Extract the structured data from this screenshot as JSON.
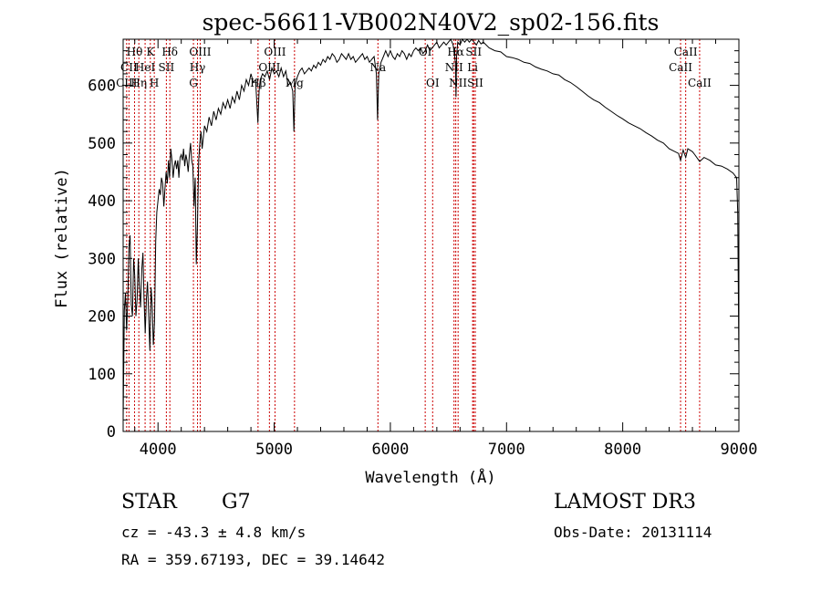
{
  "chart_data": {
    "type": "line",
    "title": "spec-56611-VB002N40V2_sp02-156.fits",
    "xlabel": "Wavelength (Å)",
    "ylabel": "Flux (relative)",
    "xlim": [
      3700,
      9000
    ],
    "ylim": [
      0,
      680
    ],
    "xticks": [
      4000,
      5000,
      6000,
      7000,
      8000,
      9000
    ],
    "yticks": [
      0,
      100,
      200,
      300,
      400,
      500,
      600
    ],
    "series": [
      {
        "points": [
          [
            3700,
            20
          ],
          [
            3710,
            210
          ],
          [
            3720,
            240
          ],
          [
            3730,
            175
          ],
          [
            3740,
            230
          ],
          [
            3750,
            320
          ],
          [
            3760,
            340
          ],
          [
            3770,
            220
          ],
          [
            3780,
            200
          ],
          [
            3790,
            300
          ],
          [
            3800,
            270
          ],
          [
            3810,
            200
          ],
          [
            3820,
            230
          ],
          [
            3830,
            300
          ],
          [
            3840,
            250
          ],
          [
            3850,
            215
          ],
          [
            3860,
            280
          ],
          [
            3870,
            310
          ],
          [
            3880,
            230
          ],
          [
            3890,
            170
          ],
          [
            3900,
            230
          ],
          [
            3910,
            260
          ],
          [
            3920,
            200
          ],
          [
            3930,
            140
          ],
          [
            3940,
            250
          ],
          [
            3950,
            220
          ],
          [
            3960,
            150
          ],
          [
            3970,
            190
          ],
          [
            3980,
            330
          ],
          [
            3990,
            380
          ],
          [
            4000,
            400
          ],
          [
            4010,
            420
          ],
          [
            4020,
            410
          ],
          [
            4030,
            440
          ],
          [
            4040,
            430
          ],
          [
            4050,
            390
          ],
          [
            4060,
            420
          ],
          [
            4070,
            450
          ],
          [
            4080,
            430
          ],
          [
            4090,
            470
          ],
          [
            4100,
            440
          ],
          [
            4110,
            490
          ],
          [
            4120,
            470
          ],
          [
            4130,
            440
          ],
          [
            4140,
            460
          ],
          [
            4150,
            470
          ],
          [
            4160,
            455
          ],
          [
            4170,
            470
          ],
          [
            4180,
            440
          ],
          [
            4190,
            475
          ],
          [
            4200,
            480
          ],
          [
            4210,
            470
          ],
          [
            4220,
            490
          ],
          [
            4230,
            460
          ],
          [
            4240,
            480
          ],
          [
            4250,
            470
          ],
          [
            4260,
            450
          ],
          [
            4270,
            480
          ],
          [
            4280,
            500
          ],
          [
            4290,
            470
          ],
          [
            4300,
            460
          ],
          [
            4310,
            390
          ],
          [
            4320,
            440
          ],
          [
            4330,
            290
          ],
          [
            4340,
            360
          ],
          [
            4350,
            470
          ],
          [
            4360,
            500
          ],
          [
            4370,
            520
          ],
          [
            4380,
            490
          ],
          [
            4390,
            510
          ],
          [
            4400,
            530
          ],
          [
            4420,
            520
          ],
          [
            4440,
            545
          ],
          [
            4460,
            530
          ],
          [
            4480,
            555
          ],
          [
            4500,
            540
          ],
          [
            4520,
            560
          ],
          [
            4540,
            550
          ],
          [
            4560,
            570
          ],
          [
            4580,
            560
          ],
          [
            4600,
            575
          ],
          [
            4620,
            560
          ],
          [
            4640,
            580
          ],
          [
            4660,
            570
          ],
          [
            4680,
            590
          ],
          [
            4700,
            575
          ],
          [
            4720,
            600
          ],
          [
            4740,
            590
          ],
          [
            4760,
            610
          ],
          [
            4780,
            600
          ],
          [
            4800,
            620
          ],
          [
            4820,
            605
          ],
          [
            4840,
            610
          ],
          [
            4860,
            535
          ],
          [
            4870,
            590
          ],
          [
            4880,
            610
          ],
          [
            4900,
            620
          ],
          [
            4920,
            615
          ],
          [
            4940,
            625
          ],
          [
            4960,
            610
          ],
          [
            4980,
            630
          ],
          [
            5000,
            620
          ],
          [
            5020,
            625
          ],
          [
            5040,
            615
          ],
          [
            5060,
            630
          ],
          [
            5080,
            615
          ],
          [
            5100,
            625
          ],
          [
            5120,
            600
          ],
          [
            5140,
            605
          ],
          [
            5160,
            590
          ],
          [
            5170,
            520
          ],
          [
            5180,
            600
          ],
          [
            5200,
            615
          ],
          [
            5220,
            625
          ],
          [
            5240,
            630
          ],
          [
            5260,
            620
          ],
          [
            5280,
            625
          ],
          [
            5300,
            630
          ],
          [
            5320,
            625
          ],
          [
            5340,
            635
          ],
          [
            5360,
            630
          ],
          [
            5380,
            640
          ],
          [
            5400,
            635
          ],
          [
            5420,
            645
          ],
          [
            5440,
            640
          ],
          [
            5460,
            650
          ],
          [
            5480,
            645
          ],
          [
            5500,
            655
          ],
          [
            5520,
            650
          ],
          [
            5540,
            640
          ],
          [
            5560,
            645
          ],
          [
            5580,
            655
          ],
          [
            5600,
            650
          ],
          [
            5620,
            645
          ],
          [
            5640,
            655
          ],
          [
            5660,
            645
          ],
          [
            5680,
            650
          ],
          [
            5700,
            640
          ],
          [
            5720,
            645
          ],
          [
            5740,
            650
          ],
          [
            5760,
            655
          ],
          [
            5780,
            645
          ],
          [
            5800,
            650
          ],
          [
            5820,
            640
          ],
          [
            5840,
            645
          ],
          [
            5860,
            650
          ],
          [
            5880,
            620
          ],
          [
            5890,
            540
          ],
          [
            5900,
            620
          ],
          [
            5920,
            640
          ],
          [
            5940,
            650
          ],
          [
            5960,
            660
          ],
          [
            5980,
            650
          ],
          [
            6000,
            660
          ],
          [
            6020,
            650
          ],
          [
            6040,
            645
          ],
          [
            6060,
            655
          ],
          [
            6080,
            650
          ],
          [
            6100,
            660
          ],
          [
            6120,
            655
          ],
          [
            6140,
            645
          ],
          [
            6160,
            655
          ],
          [
            6180,
            650
          ],
          [
            6200,
            660
          ],
          [
            6220,
            665
          ],
          [
            6240,
            660
          ],
          [
            6260,
            665
          ],
          [
            6280,
            655
          ],
          [
            6300,
            660
          ],
          [
            6320,
            670
          ],
          [
            6340,
            660
          ],
          [
            6360,
            665
          ],
          [
            6380,
            670
          ],
          [
            6400,
            675
          ],
          [
            6420,
            665
          ],
          [
            6440,
            670
          ],
          [
            6460,
            675
          ],
          [
            6480,
            670
          ],
          [
            6500,
            675
          ],
          [
            6520,
            680
          ],
          [
            6540,
            670
          ],
          [
            6560,
            640
          ],
          [
            6565,
            580
          ],
          [
            6570,
            650
          ],
          [
            6580,
            675
          ],
          [
            6600,
            670
          ],
          [
            6620,
            680
          ],
          [
            6640,
            675
          ],
          [
            6660,
            680
          ],
          [
            6680,
            675
          ],
          [
            6700,
            680
          ],
          [
            6720,
            675
          ],
          [
            6740,
            670
          ],
          [
            6760,
            678
          ],
          [
            6780,
            672
          ],
          [
            6800,
            675
          ],
          [
            6850,
            665
          ],
          [
            6900,
            660
          ],
          [
            6950,
            658
          ],
          [
            7000,
            650
          ],
          [
            7050,
            648
          ],
          [
            7100,
            645
          ],
          [
            7150,
            640
          ],
          [
            7200,
            638
          ],
          [
            7250,
            632
          ],
          [
            7300,
            628
          ],
          [
            7350,
            625
          ],
          [
            7400,
            620
          ],
          [
            7450,
            618
          ],
          [
            7500,
            610
          ],
          [
            7550,
            605
          ],
          [
            7600,
            598
          ],
          [
            7650,
            590
          ],
          [
            7700,
            582
          ],
          [
            7750,
            575
          ],
          [
            7800,
            570
          ],
          [
            7850,
            562
          ],
          [
            7900,
            555
          ],
          [
            7950,
            548
          ],
          [
            8000,
            542
          ],
          [
            8050,
            535
          ],
          [
            8100,
            530
          ],
          [
            8150,
            525
          ],
          [
            8200,
            518
          ],
          [
            8250,
            512
          ],
          [
            8300,
            505
          ],
          [
            8350,
            500
          ],
          [
            8400,
            490
          ],
          [
            8450,
            485
          ],
          [
            8480,
            482
          ],
          [
            8498,
            470
          ],
          [
            8520,
            488
          ],
          [
            8542,
            475
          ],
          [
            8560,
            490
          ],
          [
            8600,
            485
          ],
          [
            8620,
            480
          ],
          [
            8662,
            468
          ],
          [
            8700,
            475
          ],
          [
            8750,
            470
          ],
          [
            8800,
            462
          ],
          [
            8850,
            460
          ],
          [
            8900,
            455
          ],
          [
            8950,
            448
          ],
          [
            8980,
            440
          ],
          [
            8990,
            380
          ],
          [
            9000,
            120
          ]
        ]
      }
    ],
    "lines": [
      {
        "name": "Hθ",
        "wavelength": 3798,
        "row": 0
      },
      {
        "name": "CII",
        "wavelength": 3750,
        "row": 1
      },
      {
        "name": "CIII",
        "wavelength": 3730,
        "row": 2
      },
      {
        "name": "HeI",
        "wavelength": 3889,
        "row": 1
      },
      {
        "name": "Hη",
        "wavelength": 3835,
        "row": 2
      },
      {
        "name": "K",
        "wavelength": 3934,
        "row": 0
      },
      {
        "name": "H",
        "wavelength": 3968,
        "row": 2
      },
      {
        "name": "Hδ",
        "wavelength": 4102,
        "row": 0
      },
      {
        "name": "SII",
        "wavelength": 4072,
        "row": 1
      },
      {
        "name": "OIII",
        "wavelength": 4363,
        "row": 0
      },
      {
        "name": "Hγ",
        "wavelength": 4340,
        "row": 1
      },
      {
        "name": "G",
        "wavelength": 4305,
        "row": 2
      },
      {
        "name": "OIII",
        "wavelength": 5007,
        "row": 0
      },
      {
        "name": "OIII",
        "wavelength": 4959,
        "row": 1
      },
      {
        "name": "Hβ",
        "wavelength": 4861,
        "row": 2
      },
      {
        "name": "Mg",
        "wavelength": 5175,
        "row": 2
      },
      {
        "name": "Na",
        "wavelength": 5893,
        "row": 1
      },
      {
        "name": "OI",
        "wavelength": 6300,
        "row": 0
      },
      {
        "name": "OI",
        "wavelength": 6364,
        "row": 2
      },
      {
        "name": "Hα",
        "wavelength": 6563,
        "row": 0
      },
      {
        "name": "NII",
        "wavelength": 6548,
        "row": 1
      },
      {
        "name": "NII",
        "wavelength": 6583,
        "row": 2
      },
      {
        "name": "SII",
        "wavelength": 6717,
        "row": 0
      },
      {
        "name": "Li",
        "wavelength": 6708,
        "row": 1
      },
      {
        "name": "SII",
        "wavelength": 6731,
        "row": 2
      },
      {
        "name": "CaII",
        "wavelength": 8542,
        "row": 0
      },
      {
        "name": "CaII",
        "wavelength": 8498,
        "row": 1
      },
      {
        "name": "CaII",
        "wavelength": 8662,
        "row": 2
      }
    ],
    "grid": false,
    "line_marker_color": "#cc0000"
  },
  "info": {
    "object_type": "STAR",
    "subclass": "G7",
    "survey": "LAMOST DR3",
    "cz": "cz = -43.3 ± 4.8 km/s",
    "obs_date": "Obs-Date: 20131114",
    "coords": "RA = 359.67193, DEC =  39.14642"
  }
}
